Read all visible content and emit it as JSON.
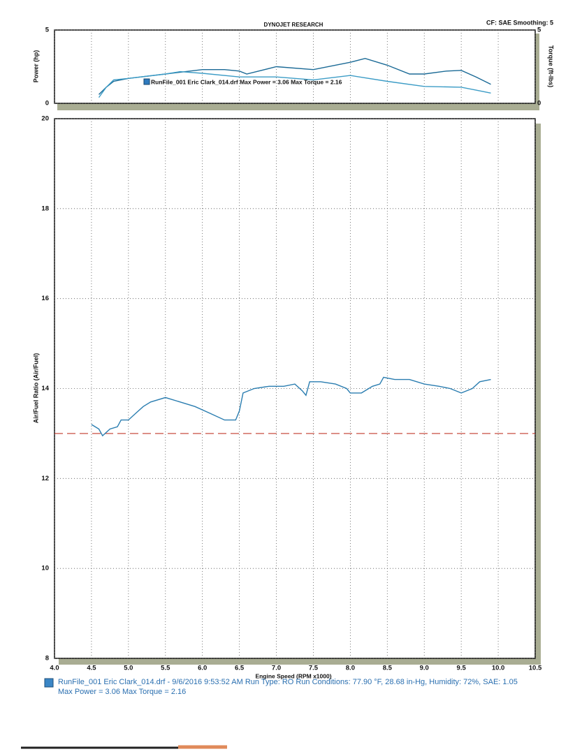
{
  "chart_data": [
    {
      "type": "line",
      "title": "DYNOJET RESEARCH",
      "annotation": "CF: SAE  Smoothing: 5",
      "ylabel": "Power (hp)",
      "y2label": "Torque (ft-lbs)",
      "legend_text": "RunFile_001 Eric Clark_014.drf Max Power = 3.06   Max Torque = 2.16",
      "xlim": [
        4,
        10.5
      ],
      "xticks": [
        4,
        4.5,
        5,
        5.5,
        6,
        6.5,
        7,
        7.5,
        8,
        8.5,
        9,
        9.5,
        10,
        10.5
      ],
      "ylim": [
        0,
        5
      ],
      "yticks": [
        0,
        5
      ],
      "y2lim": [
        0,
        5
      ],
      "y2ticks": [
        0,
        5
      ],
      "grid": true,
      "series": [
        {
          "color": "#1b6a96",
          "x": [
            4.6,
            4.7,
            4.8,
            5.0,
            5.5,
            6.0,
            6.3,
            6.5,
            6.6,
            7.0,
            7.5,
            8.0,
            8.2,
            8.5,
            8.8,
            9.0,
            9.3,
            9.5,
            9.7,
            9.9
          ],
          "values": [
            0.6,
            1.1,
            1.5,
            1.7,
            2.0,
            2.3,
            2.3,
            2.2,
            2.0,
            2.5,
            2.3,
            2.8,
            3.06,
            2.6,
            2.0,
            2.0,
            2.2,
            2.25,
            1.8,
            1.3
          ]
        },
        {
          "color": "#3c9cc6",
          "axis": "y2",
          "x": [
            4.6,
            4.7,
            4.8,
            5.0,
            5.5,
            5.7,
            6.0,
            6.5,
            7.0,
            7.5,
            8.0,
            8.5,
            9.0,
            9.5,
            9.7,
            9.9
          ],
          "values": [
            0.4,
            1.1,
            1.6,
            1.7,
            2.0,
            2.16,
            2.05,
            1.8,
            1.8,
            1.6,
            1.9,
            1.5,
            1.15,
            1.1,
            0.9,
            0.7
          ]
        }
      ]
    },
    {
      "type": "line",
      "xlabel": "Engine Speed (RPM x1000)",
      "ylabel": "Air/Fuel Ratio (Air/Fuel)",
      "xlim": [
        4,
        10.5
      ],
      "xticks": [
        {
          "value": 4,
          "label": "4.0"
        },
        4.5,
        {
          "value": 5,
          "label": "5.0"
        },
        5.5,
        {
          "value": 6,
          "label": "6.0"
        },
        6.5,
        {
          "value": 7,
          "label": "7.0"
        },
        7.5,
        {
          "value": 8,
          "label": "8.0"
        },
        8.5,
        {
          "value": 9,
          "label": "9.0"
        },
        9.5,
        {
          "value": 10,
          "label": "10.0"
        },
        10.5
      ],
      "ylim": [
        8,
        20
      ],
      "yticks": [
        8,
        10,
        12,
        14,
        16,
        18,
        20
      ],
      "grid": true,
      "reference_line": {
        "value": 13,
        "color": "#c0392b"
      },
      "notes": [
        "RunFile_001 Eric Clark_014.drf - 9/6/2016 9:53:52 AM  Run Type: RO  Run Conditions: 77.90 °F, 28.68 in-Hg,  Humidity:  72%, SAE: 1.05",
        "Max Power = 3.06  Max Torque = 2.16"
      ],
      "series": [
        {
          "color": "#2a7db0",
          "x": [
            4.5,
            4.6,
            4.65,
            4.75,
            4.85,
            4.9,
            5.0,
            5.1,
            5.2,
            5.3,
            5.5,
            5.7,
            5.9,
            6.1,
            6.3,
            6.45,
            6.5,
            6.55,
            6.7,
            6.9,
            7.1,
            7.25,
            7.35,
            7.4,
            7.45,
            7.6,
            7.8,
            7.95,
            8.0,
            8.15,
            8.3,
            8.4,
            8.45,
            8.6,
            8.8,
            9.0,
            9.2,
            9.35,
            9.5,
            9.65,
            9.75,
            9.9
          ],
          "values": [
            13.2,
            13.1,
            12.95,
            13.1,
            13.15,
            13.3,
            13.3,
            13.45,
            13.6,
            13.7,
            13.8,
            13.7,
            13.6,
            13.45,
            13.3,
            13.3,
            13.5,
            13.9,
            14.0,
            14.05,
            14.05,
            14.1,
            13.95,
            13.85,
            14.15,
            14.15,
            14.1,
            14.0,
            13.9,
            13.9,
            14.05,
            14.1,
            14.25,
            14.2,
            14.2,
            14.1,
            14.05,
            14.0,
            13.9,
            14.0,
            14.15,
            14.2
          ]
        }
      ]
    }
  ]
}
